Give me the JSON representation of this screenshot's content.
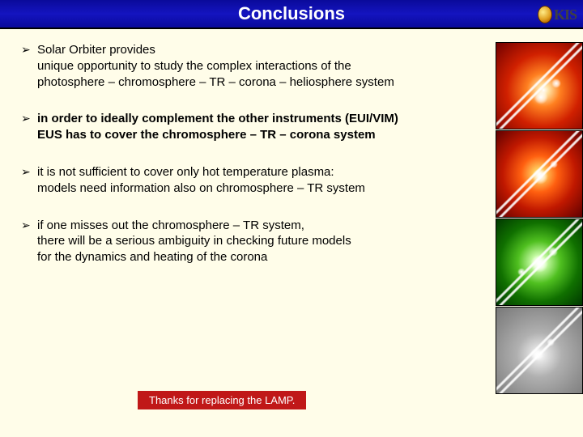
{
  "header": {
    "title": "Conclusions",
    "logo_text": "KIS"
  },
  "bullets": [
    {
      "bold": false,
      "lines": [
        "Solar Orbiter provides",
        "unique opportunity to study the complex interactions of the",
        "photosphere – chromosphere – TR – corona – heliosphere system"
      ]
    },
    {
      "bold": true,
      "lines": [
        "in order to ideally complement the other instruments (EUI/VIM)",
        "EUS has to cover the chromosphere – TR – corona system"
      ]
    },
    {
      "bold": false,
      "lines": [
        "it is not sufficient to cover only hot temperature plasma:",
        "models need information also on chromosphere – TR system"
      ]
    },
    {
      "bold": false,
      "lines": [
        "if one misses out the chromosphere – TR system,",
        "there will be a serious ambiguity in checking future models",
        "for the dynamics and heating of the corona"
      ]
    }
  ],
  "footnote": "Thanks for replacing the LAMP.",
  "thumbnails": [
    {
      "name": "solar-image-red-1"
    },
    {
      "name": "solar-image-red-2"
    },
    {
      "name": "solar-image-green"
    },
    {
      "name": "solar-image-gray"
    }
  ],
  "colors": {
    "titlebar_bg": "#0a0a9a",
    "page_bg": "#fffde9",
    "footnote_bg": "#c01818"
  }
}
